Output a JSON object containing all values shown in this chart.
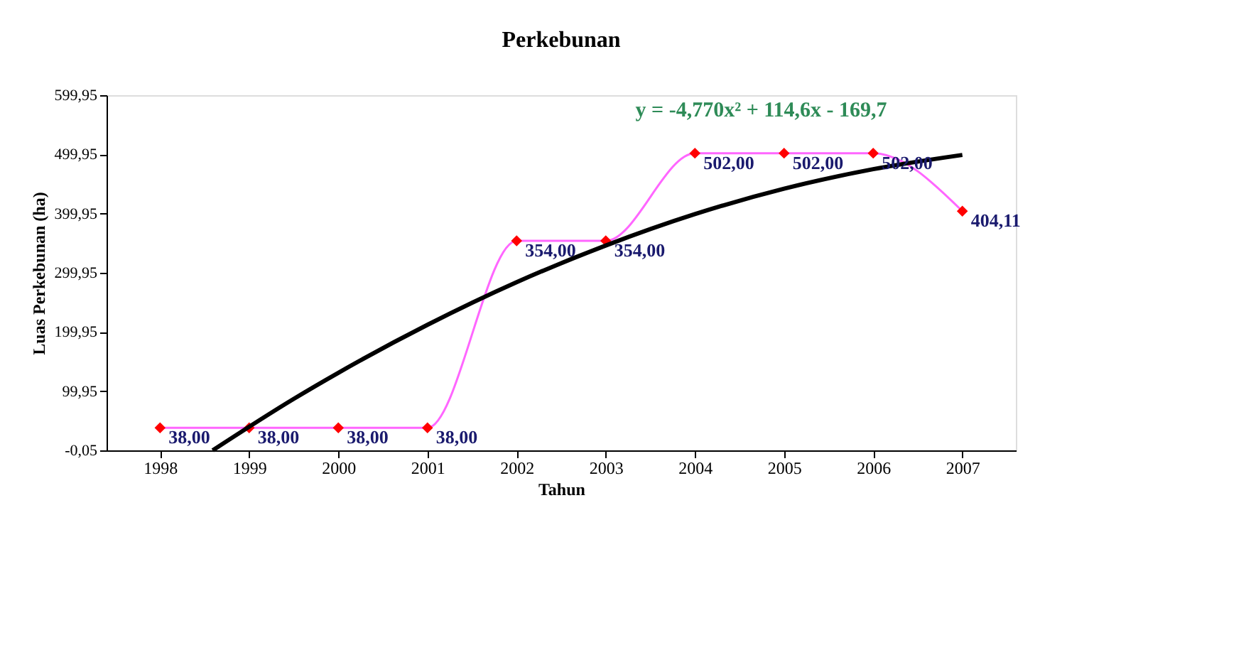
{
  "chart_data": {
    "type": "line",
    "title": "Perkebunan",
    "xlabel": "Tahun",
    "ylabel": "Luas Perkebunan (ha)",
    "x": [
      1998,
      1999,
      2000,
      2001,
      2002,
      2003,
      2004,
      2005,
      2006,
      2007
    ],
    "series": [
      {
        "color": "#ff66ff",
        "marker": "diamond",
        "values": [
          38,
          38,
          38,
          38,
          354,
          354,
          502,
          502,
          502,
          404.11
        ],
        "value_labels": [
          "38,00",
          "38,00",
          "38,00",
          "38,00",
          "354,00",
          "354,00",
          "502,00",
          "502,00",
          "502,00",
          "404,11"
        ]
      },
      {
        "color": "#000000",
        "marker": "none",
        "x": [
          1998.59,
          1999.5,
          2000,
          2001,
          2002,
          2003,
          2004,
          2005,
          2006,
          2007
        ],
        "values": [
          0,
          87,
          131,
          212,
          284,
          346,
          399,
          442,
          475,
          499
        ]
      }
    ],
    "annotations": [
      "y = -4,770x² + 114,6x - 169,7"
    ],
    "xlim": [
      1997.4,
      2007.6
    ],
    "xticks": [
      1998,
      1999,
      2000,
      2001,
      2002,
      2003,
      2004,
      2005,
      2006,
      2007
    ],
    "ylim": [
      -0.05,
      599.95
    ],
    "yticks": [
      {
        "value": -0.05,
        "label": "-0,05"
      },
      {
        "value": 99.95,
        "label": "99,95"
      },
      {
        "value": 199.95,
        "label": "199,95"
      },
      {
        "value": 299.95,
        "label": "299,95"
      },
      {
        "value": 399.95,
        "label": "399,95"
      },
      {
        "value": 499.95,
        "label": "499,95"
      },
      {
        "value": 599.95,
        "label": "599,95"
      }
    ],
    "grid": false
  }
}
